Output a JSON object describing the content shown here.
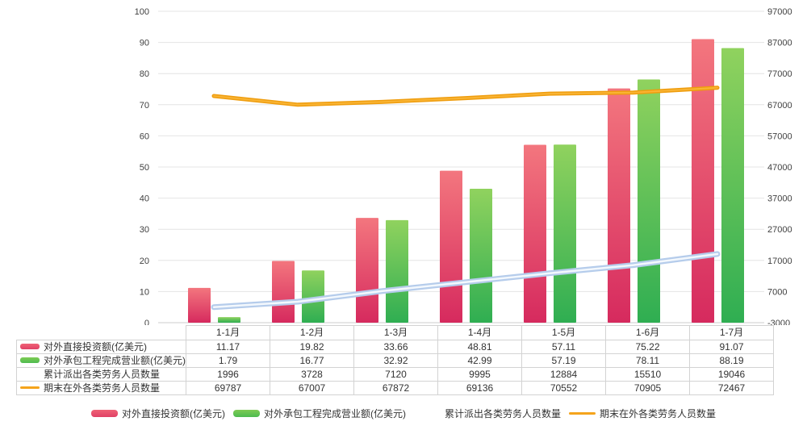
{
  "chart_data": {
    "type": "combo-bar-line",
    "title": "",
    "categories": [
      "1-1月",
      "1-2月",
      "1-3月",
      "1-4月",
      "1-5月",
      "1-6月",
      "1-7月"
    ],
    "series": [
      {
        "name": "对外直接投资额(亿美元)",
        "type": "bar",
        "axis": "left",
        "values": [
          11.17,
          19.82,
          33.66,
          48.81,
          57.11,
          75.22,
          91.07
        ],
        "color_top": "#f3767e",
        "color_bottom": "#d62a5e",
        "swatch_color_top": "#ef6276",
        "swatch_color_bottom": "#e04065"
      },
      {
        "name": "对外承包工程完成营业额(亿美元)",
        "type": "bar",
        "axis": "left",
        "values": [
          1.79,
          16.77,
          32.92,
          42.99,
          57.19,
          78.11,
          88.19
        ],
        "color_top": "#90d25e",
        "color_bottom": "#2fae52",
        "swatch_color_top": "#7ecb54",
        "swatch_color_bottom": "#4dbb50"
      },
      {
        "name": "累计派出各类劳务人员数量",
        "type": "line",
        "axis": "right",
        "values": [
          1996,
          3728,
          7120,
          9995,
          12884,
          15510,
          19046
        ],
        "line_color": "#b5cceb",
        "line_core_color": "#f3f8fd",
        "swatch_color": "#ffffff"
      },
      {
        "name": "期末在外各类劳务人员数量",
        "type": "line",
        "axis": "right",
        "values": [
          69787,
          67007,
          67872,
          69136,
          70552,
          70905,
          72467
        ],
        "line_color": "#ef9d0e",
        "line_core_color": "#f9b434",
        "swatch_color": "#f5a41c"
      }
    ],
    "left_axis": {
      "min": 0,
      "max": 100,
      "step": 10,
      "ticks": [
        "0",
        "10",
        "20",
        "30",
        "40",
        "50",
        "60",
        "70",
        "80",
        "90",
        "100"
      ]
    },
    "right_axis": {
      "min": -3000,
      "max": 97000,
      "step": 10000,
      "ticks": [
        "-3000",
        "7000",
        "17000",
        "27000",
        "37000",
        "47000",
        "57000",
        "67000",
        "77000",
        "87000",
        "97000"
      ]
    },
    "grid": true,
    "legend_position": "bottom",
    "colors": {
      "gridline": "#e4e4e4",
      "baseline": "#cccccc",
      "axis_text": "#404040",
      "table_border": "#d3d3d3",
      "table_text": "#333333"
    }
  },
  "table": {
    "rows": [
      {
        "label": "对外直接投资额(亿美元)",
        "values": [
          "11.17",
          "19.82",
          "33.66",
          "48.81",
          "57.11",
          "75.22",
          "91.07"
        ]
      },
      {
        "label": "对外承包工程完成营业额(亿美元)",
        "values": [
          "1.79",
          "16.77",
          "32.92",
          "42.99",
          "57.19",
          "78.11",
          "88.19"
        ]
      },
      {
        "label": "累计派出各类劳务人员数量",
        "values": [
          "1996",
          "3728",
          "7120",
          "9995",
          "12884",
          "15510",
          "19046"
        ]
      },
      {
        "label": "期末在外各类劳务人员数量",
        "values": [
          "69787",
          "67007",
          "67872",
          "69136",
          "70552",
          "70905",
          "72467"
        ]
      }
    ]
  },
  "legend": {
    "items": [
      {
        "label": "对外直接投资额(亿美元)"
      },
      {
        "label": "对外承包工程完成营业额(亿美元)"
      },
      {
        "label": "累计派出各类劳务人员数量"
      },
      {
        "label": "期末在外各类劳务人员数量"
      }
    ]
  }
}
